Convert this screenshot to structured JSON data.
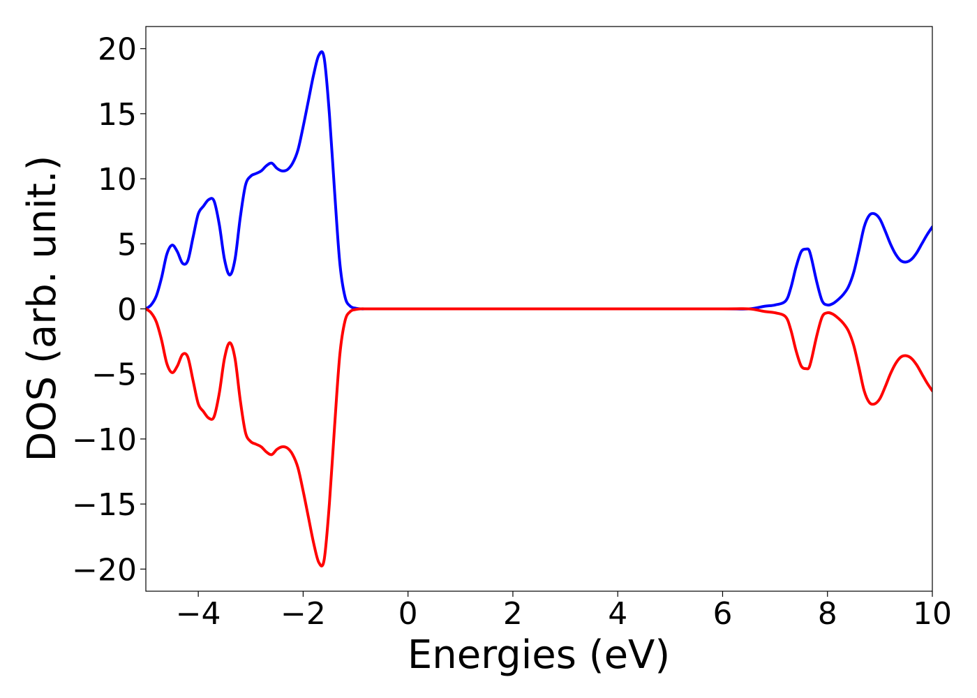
{
  "chart_data": {
    "type": "line",
    "title": "",
    "xlabel": "Energies (eV)",
    "ylabel": "DOS (arb. unit.)",
    "xlim": [
      -5,
      10
    ],
    "ylim": [
      -21.7,
      21.7
    ],
    "grid": false,
    "legend": "none",
    "x_ticks": [
      -4,
      -2,
      0,
      2,
      4,
      6,
      8,
      10
    ],
    "x_tick_labels": [
      "−4",
      "−2",
      "0",
      "2",
      "4",
      "6",
      "8",
      "10"
    ],
    "y_ticks": [
      20,
      15,
      10,
      5,
      0,
      -5,
      -10,
      -15,
      -20
    ],
    "y_tick_labels": [
      "20",
      "15",
      "10",
      "5",
      "0",
      "−5",
      "−10",
      "−15",
      "−20"
    ],
    "series": [
      {
        "color": "#0000ff",
        "x": [
          -5.0,
          -4.9,
          -4.8,
          -4.7,
          -4.6,
          -4.5,
          -4.4,
          -4.3,
          -4.2,
          -4.1,
          -4.0,
          -3.9,
          -3.8,
          -3.7,
          -3.6,
          -3.5,
          -3.4,
          -3.3,
          -3.2,
          -3.1,
          -3.0,
          -2.9,
          -2.8,
          -2.7,
          -2.6,
          -2.5,
          -2.4,
          -2.3,
          -2.2,
          -2.1,
          -2.0,
          -1.9,
          -1.8,
          -1.7,
          -1.6,
          -1.5,
          -1.4,
          -1.3,
          -1.2,
          -1.1,
          -1.0,
          -0.9,
          -0.8,
          -0.7,
          -0.6,
          -0.5,
          0.0,
          2.0,
          4.0,
          6.0,
          6.5,
          6.8,
          7.0,
          7.2,
          7.3,
          7.4,
          7.5,
          7.6,
          7.65,
          7.7,
          7.8,
          7.9,
          8.0,
          8.1,
          8.2,
          8.3,
          8.4,
          8.5,
          8.6,
          8.7,
          8.8,
          8.9,
          9.0,
          9.1,
          9.2,
          9.3,
          9.4,
          9.5,
          9.6,
          9.7,
          9.8,
          9.9,
          10.0
        ],
        "y": [
          0.0,
          0.3,
          1.0,
          2.4,
          4.2,
          4.9,
          4.4,
          3.5,
          3.7,
          5.5,
          7.3,
          7.9,
          8.4,
          8.3,
          6.5,
          3.8,
          2.6,
          3.8,
          7.0,
          9.5,
          10.2,
          10.4,
          10.6,
          11.0,
          11.2,
          10.8,
          10.6,
          10.7,
          11.2,
          12.2,
          14.0,
          16.0,
          18.0,
          19.5,
          19.3,
          15.0,
          9.0,
          3.5,
          0.9,
          0.2,
          0.05,
          0.0,
          0.0,
          0.0,
          0.0,
          0.0,
          0.0,
          0.0,
          0.0,
          0.0,
          0.0,
          0.2,
          0.3,
          0.6,
          1.6,
          3.2,
          4.4,
          4.6,
          4.5,
          3.8,
          2.0,
          0.6,
          0.3,
          0.4,
          0.7,
          1.1,
          1.7,
          2.8,
          4.5,
          6.3,
          7.2,
          7.3,
          6.9,
          6.0,
          5.0,
          4.2,
          3.7,
          3.6,
          3.8,
          4.3,
          5.0,
          5.7,
          6.3
        ]
      },
      {
        "color": "#ff0000",
        "x": [
          -5.0,
          -4.9,
          -4.8,
          -4.7,
          -4.6,
          -4.5,
          -4.4,
          -4.3,
          -4.2,
          -4.1,
          -4.0,
          -3.9,
          -3.8,
          -3.7,
          -3.6,
          -3.5,
          -3.4,
          -3.3,
          -3.2,
          -3.1,
          -3.0,
          -2.9,
          -2.8,
          -2.7,
          -2.6,
          -2.5,
          -2.4,
          -2.3,
          -2.2,
          -2.1,
          -2.0,
          -1.9,
          -1.8,
          -1.7,
          -1.6,
          -1.5,
          -1.4,
          -1.3,
          -1.2,
          -1.1,
          -1.0,
          -0.9,
          -0.8,
          -0.7,
          -0.6,
          -0.5,
          0.0,
          2.0,
          4.0,
          6.0,
          6.5,
          6.8,
          7.0,
          7.2,
          7.3,
          7.4,
          7.5,
          7.6,
          7.65,
          7.7,
          7.8,
          7.9,
          8.0,
          8.1,
          8.2,
          8.3,
          8.4,
          8.5,
          8.6,
          8.7,
          8.8,
          8.9,
          9.0,
          9.1,
          9.2,
          9.3,
          9.4,
          9.5,
          9.6,
          9.7,
          9.8,
          9.9,
          10.0
        ],
        "y": [
          0.0,
          -0.3,
          -1.0,
          -2.4,
          -4.2,
          -4.9,
          -4.4,
          -3.5,
          -3.7,
          -5.5,
          -7.3,
          -7.9,
          -8.4,
          -8.3,
          -6.5,
          -3.8,
          -2.6,
          -3.8,
          -7.0,
          -9.5,
          -10.2,
          -10.4,
          -10.6,
          -11.0,
          -11.2,
          -10.8,
          -10.6,
          -10.7,
          -11.2,
          -12.2,
          -14.0,
          -16.0,
          -18.0,
          -19.5,
          -19.3,
          -15.0,
          -9.0,
          -3.5,
          -0.9,
          -0.2,
          -0.05,
          0.0,
          0.0,
          0.0,
          0.0,
          0.0,
          0.0,
          0.0,
          0.0,
          0.0,
          0.0,
          -0.2,
          -0.3,
          -0.6,
          -1.6,
          -3.2,
          -4.4,
          -4.6,
          -4.5,
          -3.8,
          -2.0,
          -0.6,
          -0.3,
          -0.4,
          -0.7,
          -1.1,
          -1.7,
          -2.8,
          -4.5,
          -6.3,
          -7.2,
          -7.3,
          -6.9,
          -6.0,
          -5.0,
          -4.2,
          -3.7,
          -3.6,
          -3.8,
          -4.3,
          -5.0,
          -5.7,
          -6.3
        ]
      }
    ]
  }
}
